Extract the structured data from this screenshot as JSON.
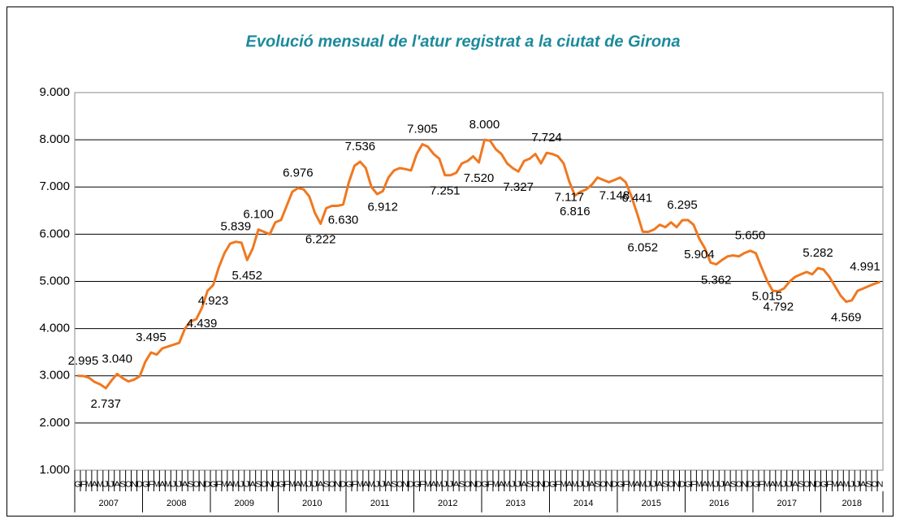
{
  "chart_data": {
    "type": "line",
    "title": "Evolució mensual de l'atur registrat a la ciutat de Girona",
    "categories": [
      "G",
      "F",
      "M",
      "A",
      "M",
      "J",
      "J",
      "A",
      "S",
      "O",
      "N",
      "D",
      "G",
      "F",
      "M",
      "A",
      "M",
      "J",
      "J",
      "A",
      "S",
      "O",
      "N",
      "D",
      "G",
      "F",
      "M",
      "A",
      "M",
      "J",
      "J",
      "A",
      "S",
      "O",
      "N",
      "D",
      "G",
      "F",
      "M",
      "A",
      "M",
      "J",
      "J",
      "A",
      "S",
      "O",
      "N",
      "D",
      "G",
      "F",
      "M",
      "A",
      "M",
      "J",
      "J",
      "A",
      "S",
      "O",
      "N",
      "D",
      "G",
      "F",
      "M",
      "A",
      "M",
      "J",
      "J",
      "A",
      "S",
      "O",
      "N",
      "D",
      "G",
      "F",
      "M",
      "A",
      "M",
      "J",
      "J",
      "A",
      "S",
      "O",
      "N",
      "D",
      "G",
      "F",
      "M",
      "A",
      "M",
      "J",
      "J",
      "A",
      "S",
      "O",
      "N",
      "D",
      "G",
      "F",
      "M",
      "A",
      "M",
      "J",
      "J",
      "A",
      "S",
      "O",
      "N",
      "D",
      "G",
      "F",
      "M",
      "A",
      "M",
      "J",
      "J",
      "A",
      "S",
      "O",
      "N",
      "D",
      "G",
      "F",
      "M",
      "A",
      "M",
      "J",
      "J",
      "A",
      "S",
      "O",
      "N",
      "D",
      "G",
      "F",
      "M",
      "A",
      "M",
      "J",
      "J",
      "A",
      "S",
      "O",
      "N"
    ],
    "years": [
      "2007",
      "2008",
      "2009",
      "2010",
      "2011",
      "2012",
      "2013",
      "2014",
      "2015",
      "2016",
      "2017",
      "2018"
    ],
    "series": [
      {
        "color": "#f07820",
        "values": [
          3000,
          2995,
          2960,
          2870,
          2820,
          2737,
          2900,
          3040,
          2950,
          2880,
          2920,
          2990,
          3300,
          3495,
          3450,
          3580,
          3620,
          3660,
          3700,
          4000,
          4150,
          4200,
          4439,
          4800,
          4923,
          5300,
          5600,
          5800,
          5839,
          5820,
          5452,
          5700,
          6100,
          6050,
          6000,
          6250,
          6300,
          6600,
          6900,
          6976,
          6950,
          6800,
          6450,
          6222,
          6550,
          6600,
          6600,
          6630,
          7100,
          7450,
          7536,
          7400,
          7000,
          6850,
          6912,
          7200,
          7350,
          7400,
          7380,
          7350,
          7700,
          7905,
          7850,
          7700,
          7600,
          7251,
          7250,
          7300,
          7500,
          7550,
          7650,
          7520,
          8000,
          7980,
          7800,
          7700,
          7500,
          7400,
          7327,
          7550,
          7600,
          7700,
          7500,
          7724,
          7700,
          7650,
          7500,
          7117,
          6816,
          6900,
          6950,
          7050,
          7200,
          7150,
          7100,
          7148,
          7200,
          7100,
          6800,
          6441,
          6052,
          6050,
          6100,
          6200,
          6150,
          6250,
          6150,
          6295,
          6300,
          6200,
          5904,
          5700,
          5400,
          5362,
          5450,
          5530,
          5550,
          5530,
          5600,
          5650,
          5600,
          5300,
          5015,
          4800,
          4792,
          4850,
          5000,
          5100,
          5150,
          5200,
          5150,
          5282,
          5250,
          5100,
          4900,
          4700,
          4569,
          4600,
          4800,
          4850,
          4900,
          4950,
          4991
        ],
        "value_labels": [
          null,
          "2.995",
          null,
          null,
          null,
          "2.737",
          null,
          "3.040",
          null,
          null,
          null,
          null,
          null,
          "3.495",
          null,
          null,
          null,
          null,
          null,
          null,
          null,
          null,
          "4.439",
          null,
          "4.923",
          null,
          null,
          null,
          "5.839",
          null,
          "5.452",
          null,
          "6.100",
          null,
          null,
          null,
          null,
          null,
          null,
          "6.976",
          null,
          null,
          null,
          "6.222",
          null,
          null,
          null,
          "6.630",
          null,
          null,
          "7.536",
          null,
          null,
          null,
          "6.912",
          null,
          null,
          null,
          null,
          null,
          null,
          "7.905",
          null,
          null,
          null,
          "7.251",
          null,
          null,
          null,
          null,
          null,
          "7.520",
          "8.000",
          null,
          null,
          null,
          null,
          null,
          "7.327",
          null,
          null,
          null,
          null,
          "7.724",
          null,
          null,
          null,
          "7.117",
          "6.816",
          null,
          null,
          null,
          null,
          null,
          null,
          "7.148",
          null,
          null,
          null,
          "6.441",
          "6.052",
          null,
          null,
          null,
          null,
          null,
          null,
          "6.295",
          null,
          null,
          "5.904",
          null,
          null,
          "5.362",
          null,
          null,
          null,
          null,
          null,
          "5.650",
          null,
          null,
          "5.015",
          null,
          "4.792",
          null,
          null,
          null,
          null,
          null,
          null,
          "5.282",
          null,
          null,
          null,
          null,
          "4.569",
          null,
          null,
          null,
          null,
          null,
          "4.991"
        ]
      }
    ],
    "ylim": [
      1000,
      9000
    ],
    "yticks": [
      {
        "value": 1000,
        "label": "1.000"
      },
      {
        "value": 2000,
        "label": "2.000"
      },
      {
        "value": 3000,
        "label": "3.000"
      },
      {
        "value": 4000,
        "label": "4.000"
      },
      {
        "value": 5000,
        "label": "5.000"
      },
      {
        "value": 6000,
        "label": "6.000"
      },
      {
        "value": 7000,
        "label": "7.000"
      },
      {
        "value": 8000,
        "label": "8.000"
      },
      {
        "value": 9000,
        "label": "9.000"
      }
    ],
    "grid": true
  }
}
